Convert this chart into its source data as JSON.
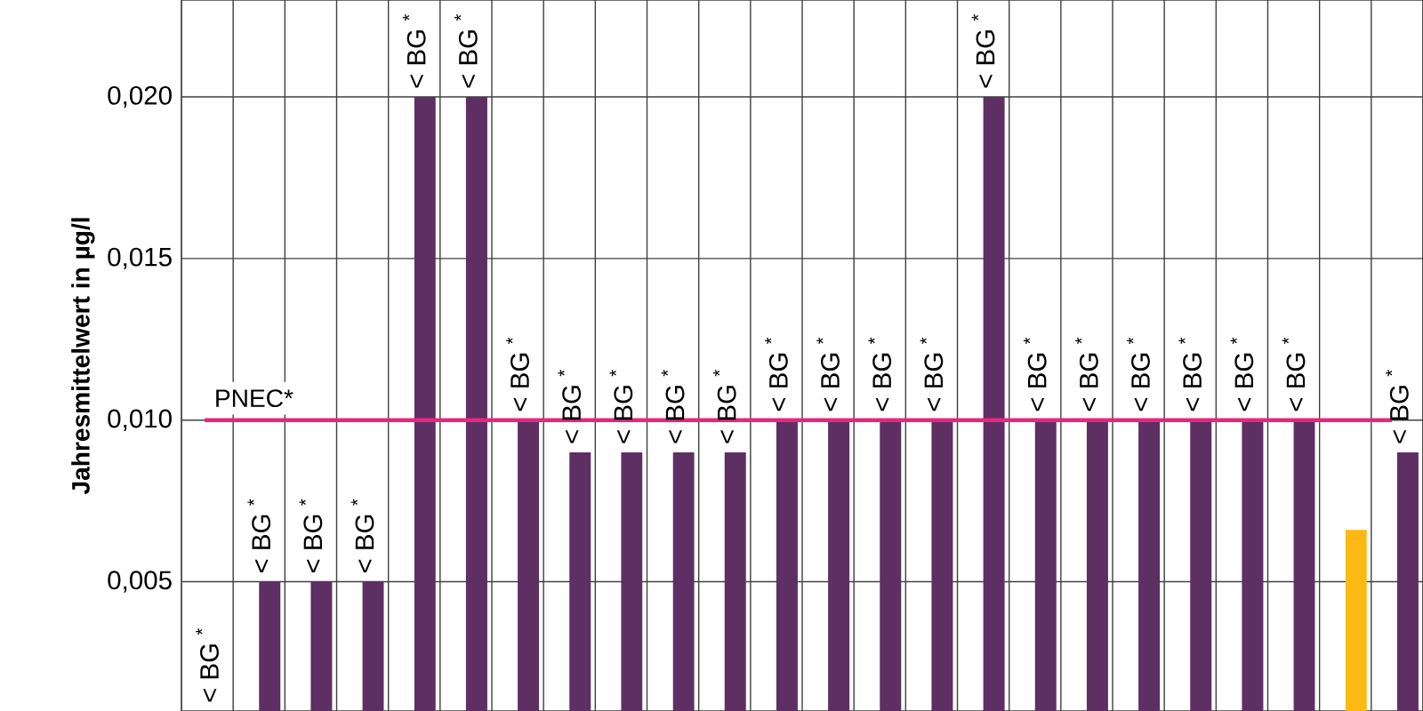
{
  "chart_data": {
    "type": "bar",
    "ylabel": "Jahresmittelwert in µg/l",
    "categories": [
      null,
      null,
      null,
      null,
      null,
      null,
      null,
      null,
      null,
      null,
      null,
      null,
      null,
      null,
      null,
      null,
      null,
      null,
      null,
      null,
      null,
      null,
      null,
      null
    ],
    "values": [
      0.001,
      0.005,
      0.005,
      0.005,
      0.02,
      0.02,
      0.01,
      0.009,
      0.009,
      0.009,
      0.009,
      0.01,
      0.01,
      0.01,
      0.01,
      0.02,
      0.01,
      0.01,
      0.01,
      0.01,
      0.01,
      0.01,
      0.0066,
      0.009
    ],
    "colors": [
      "#5e2f63",
      "#5e2f63",
      "#5e2f63",
      "#5e2f63",
      "#5e2f63",
      "#5e2f63",
      "#5e2f63",
      "#5e2f63",
      "#5e2f63",
      "#5e2f63",
      "#5e2f63",
      "#5e2f63",
      "#5e2f63",
      "#5e2f63",
      "#5e2f63",
      "#5e2f63",
      "#5e2f63",
      "#5e2f63",
      "#5e2f63",
      "#5e2f63",
      "#5e2f63",
      "#5e2f63",
      "#fdb913",
      "#5e2f63"
    ],
    "value_labels": [
      "< BG $^{*}$",
      "< BG $^{*}$",
      "< BG $^{*}$",
      "< BG $^{*}$",
      "< BG $^{*}$",
      "< BG $^{*}$",
      "< BG $^{*}$",
      "< BG $^{*}$",
      "< BG $^{*}$",
      "< BG $^{*}$",
      "< BG $^{*}$",
      "< BG $^{*}$",
      "< BG $^{*}$",
      "< BG $^{*}$",
      "< BG $^{*}$",
      "< BG $^{*}$",
      "< BG $^{*}$",
      "< BG $^{*}$",
      "< BG $^{*}$",
      "< BG $^{*}$",
      "< BG $^{*}$",
      "< BG $^{*}$",
      null,
      "< BG $^{*}$"
    ],
    "ylim": [
      0.001,
      0.023
    ],
    "yticks": [
      {
        "value": 0.005,
        "label": "0,005"
      },
      {
        "value": 0.01,
        "label": "0,010"
      },
      {
        "value": 0.015,
        "label": "0,015"
      },
      {
        "value": 0.02,
        "label": "0,020"
      }
    ],
    "ref_lines": [
      {
        "axis": "y",
        "value": 0.01,
        "label": "PNEC*",
        "color": "#e8267e"
      }
    ],
    "grid": true,
    "tick_labels": "y"
  }
}
